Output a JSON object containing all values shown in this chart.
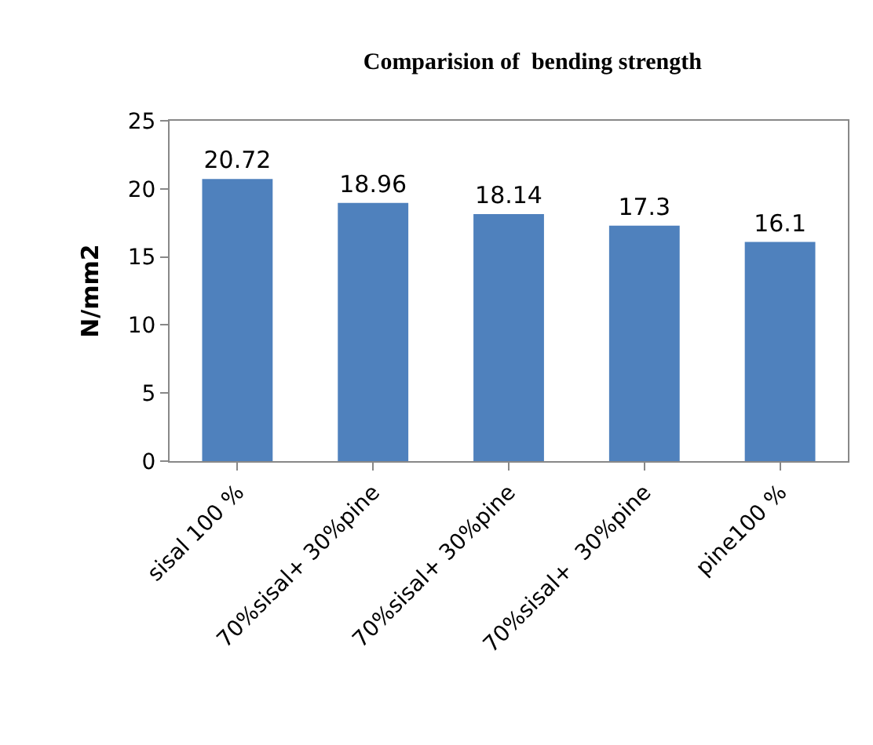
{
  "chart_data": {
    "type": "bar",
    "title": "Comparision of  bending strength",
    "ylabel": "N/mm2",
    "categories": [
      "sisal 100 %",
      "70%sisal+ 30%pine",
      "70%sisal+ 30%pine",
      "70%sisal+  30%pine",
      "pine100 %"
    ],
    "values": [
      20.72,
      18.96,
      18.14,
      17.3,
      16.1
    ],
    "color": "#4f81bd",
    "ylim": [
      0,
      25
    ],
    "yticks": [
      0,
      5,
      10,
      15,
      20,
      25
    ],
    "grid": false,
    "data_labels": true
  }
}
